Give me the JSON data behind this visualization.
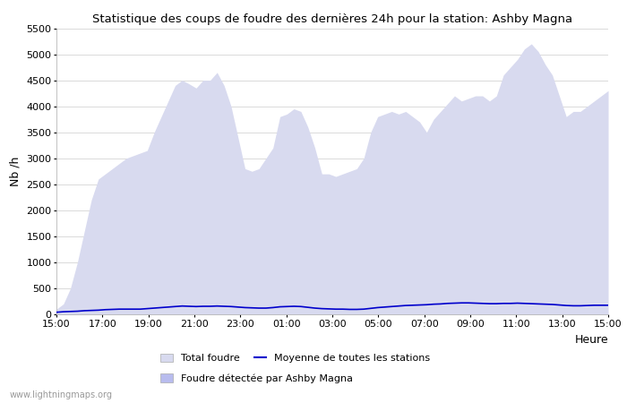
{
  "title": "Statistique des coups de foudre des dernières 24h pour la station: Ashby Magna",
  "xlabel": "Heure",
  "ylabel": "Nb /h",
  "ylim": [
    0,
    5500
  ],
  "yticks": [
    0,
    500,
    1000,
    1500,
    2000,
    2500,
    3000,
    3500,
    4000,
    4500,
    5000,
    5500
  ],
  "xtick_labels": [
    "15:00",
    "17:00",
    "19:00",
    "21:00",
    "23:00",
    "01:00",
    "03:00",
    "05:00",
    "07:00",
    "09:00",
    "11:00",
    "13:00",
    "15:00"
  ],
  "watermark": "www.lightningmaps.org",
  "fill_color": "#d8daef",
  "mean_line_color": "#0000cc",
  "background_color": "#ffffff",
  "grid_color": "#cccccc",
  "total_foudre_values": [
    100,
    200,
    500,
    1000,
    1600,
    2200,
    2600,
    2700,
    2800,
    2900,
    3000,
    3050,
    3100,
    3150,
    3500,
    3800,
    4100,
    4400,
    4500,
    4430,
    4350,
    4500,
    4500,
    4650,
    4400,
    4000,
    3400,
    2800,
    2750,
    2800,
    3000,
    3200,
    3800,
    3850,
    3950,
    3900,
    3600,
    3200,
    2700,
    2700,
    2650,
    2700,
    2750,
    2800,
    3000,
    3500,
    3800,
    3850,
    3900,
    3850,
    3900,
    3800,
    3700,
    3500,
    3750,
    3900,
    4050,
    4200,
    4100,
    4150,
    4200,
    4200,
    4100,
    4200,
    4600,
    4750,
    4900,
    5100,
    5200,
    5050,
    4800,
    4600,
    4200,
    3800,
    3900,
    3900,
    4000,
    4100,
    4200,
    4300
  ],
  "mean_values": [
    40,
    50,
    55,
    60,
    70,
    75,
    80,
    90,
    95,
    100,
    100,
    100,
    100,
    110,
    120,
    130,
    140,
    150,
    160,
    155,
    150,
    155,
    155,
    160,
    155,
    150,
    140,
    130,
    125,
    120,
    120,
    130,
    145,
    150,
    155,
    150,
    135,
    120,
    110,
    105,
    100,
    100,
    95,
    95,
    100,
    115,
    130,
    140,
    150,
    160,
    170,
    175,
    180,
    185,
    195,
    200,
    210,
    215,
    220,
    220,
    215,
    210,
    205,
    205,
    210,
    210,
    215,
    210,
    205,
    200,
    195,
    190,
    180,
    170,
    165,
    165,
    170,
    175,
    175,
    175
  ],
  "n_points": 80,
  "legend_total": "Total foudre",
  "legend_mean": "Moyenne de toutes les stations",
  "legend_detected": "Foudre détectée par Ashby Magna"
}
